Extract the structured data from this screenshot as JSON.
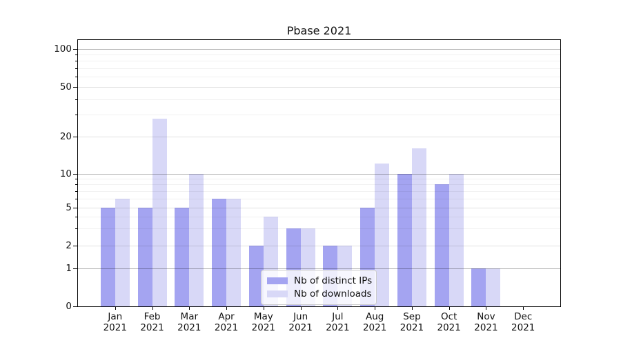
{
  "title": "Pbase 2021",
  "chart_data": {
    "type": "bar",
    "title": "Pbase 2021",
    "categories": [
      "Jan",
      "Feb",
      "Mar",
      "Apr",
      "May",
      "Jun",
      "Jul",
      "Aug",
      "Sep",
      "Oct",
      "Nov",
      "Dec"
    ],
    "category_year": "2021",
    "series": [
      {
        "name": "Nb of distinct IPs",
        "color": "#a4a4f1",
        "values": [
          5,
          5,
          5,
          6,
          2,
          3,
          2,
          5,
          10,
          8,
          1,
          0
        ]
      },
      {
        "name": "Nb of downloads",
        "color": "#d8d8f7",
        "values": [
          6,
          28,
          10,
          6,
          4,
          3,
          2,
          12,
          16,
          10,
          1,
          0
        ]
      }
    ],
    "yscale": "symlog",
    "ylim": [
      0,
      100
    ],
    "ytick_labels": [
      "0",
      "1",
      "2",
      "5",
      "10",
      "20",
      "50",
      "100"
    ],
    "yticks": [
      0,
      1,
      2,
      5,
      10,
      20,
      50,
      100
    ],
    "minor_yticks": [
      3,
      4,
      6,
      7,
      8,
      9,
      30,
      40,
      60,
      70,
      80,
      90
    ],
    "grid": true,
    "legend_position": "lower center",
    "background_color": "#ffffff",
    "text_color": "#111111"
  }
}
